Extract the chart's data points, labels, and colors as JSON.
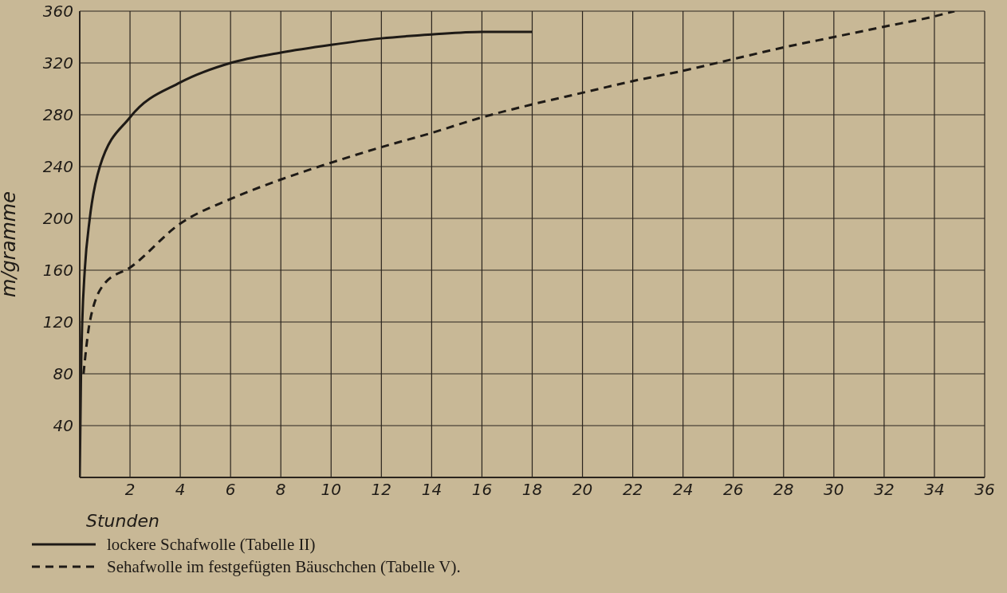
{
  "chart_data": {
    "type": "line",
    "xlabel": "Stunden",
    "ylabel": "m/gramme",
    "xlim": [
      0,
      36
    ],
    "ylim": [
      0,
      360
    ],
    "xticks": [
      2,
      4,
      6,
      8,
      10,
      12,
      14,
      16,
      18,
      20,
      22,
      24,
      26,
      28,
      30,
      32,
      34,
      36
    ],
    "yticks": [
      40,
      80,
      120,
      160,
      200,
      240,
      280,
      320,
      360
    ],
    "grid": true,
    "legend": "bottom left",
    "marker": "none",
    "series": [
      {
        "name": "lockere Schafwolle (Tabelle II)",
        "color": "#1e1a16",
        "line_style": "solid",
        "x": [
          0,
          0.05,
          0.1,
          0.2,
          0.4,
          0.8,
          2,
          4,
          6,
          8,
          10,
          12,
          14,
          16,
          18
        ],
        "values": [
          0,
          80,
          120,
          160,
          200,
          240,
          278,
          305,
          320,
          328,
          334,
          339,
          342,
          344,
          344
        ]
      },
      {
        "name": "Sehafwolle im festgefügten Bäuschchen (Tabelle V).",
        "color": "#1e1a16",
        "line_style": "dashed",
        "x": [
          0.15,
          0.4,
          1,
          2,
          4,
          6,
          8,
          10,
          12,
          14,
          16,
          18,
          20,
          22,
          24,
          26,
          28,
          30,
          32,
          34,
          34.8
        ],
        "values": [
          80,
          120,
          150,
          162,
          196,
          215,
          230,
          243,
          255,
          266,
          278,
          288,
          297,
          306,
          314,
          323,
          332,
          340,
          348,
          356,
          360
        ]
      }
    ]
  }
}
